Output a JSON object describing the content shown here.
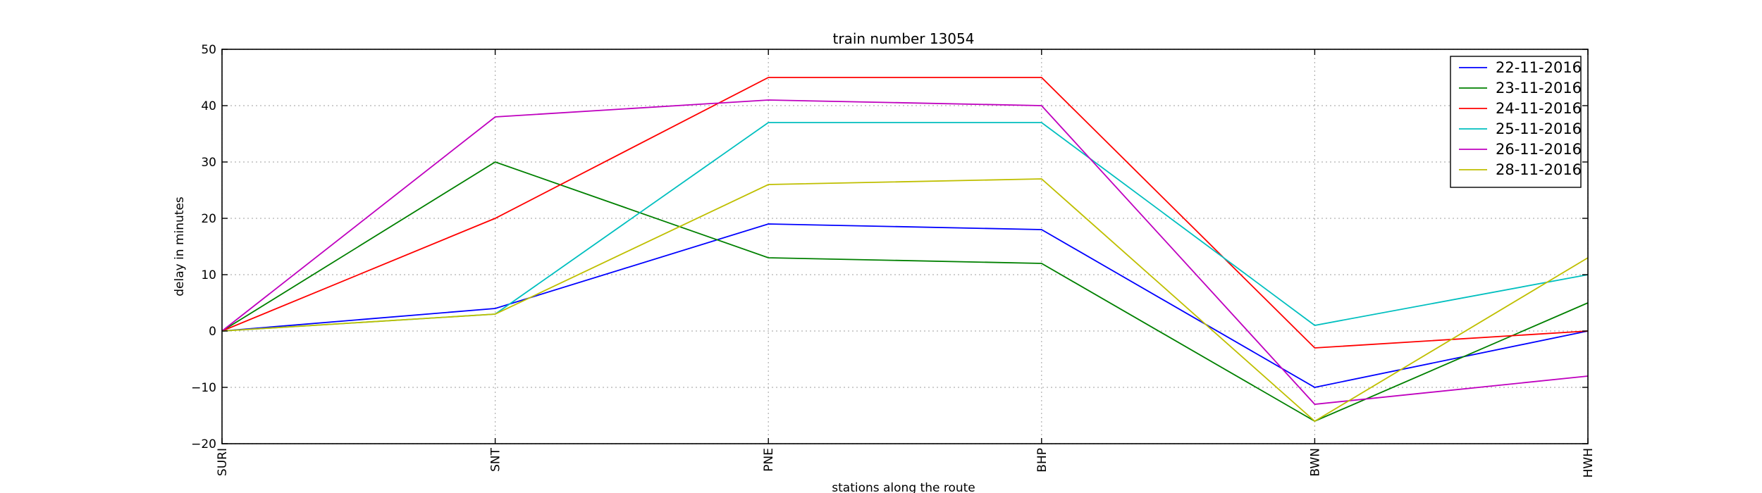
{
  "chart_data": {
    "type": "line",
    "title": "train number 13054",
    "xlabel": "stations along the route",
    "ylabel": "delay in minutes",
    "categories": [
      "SURI",
      "SNT",
      "PNE",
      "BHP",
      "BWN",
      "HWH"
    ],
    "ylim": [
      -20,
      50
    ],
    "yticks": [
      -20,
      -10,
      0,
      10,
      20,
      30,
      40,
      50
    ],
    "grid": true,
    "legend_position": "top-right",
    "series": [
      {
        "name": "22-11-2016",
        "color": "#0000ff",
        "values": [
          0,
          4,
          19,
          18,
          -10,
          0
        ]
      },
      {
        "name": "23-11-2016",
        "color": "#008000",
        "values": [
          0,
          30,
          13,
          12,
          -16,
          5
        ]
      },
      {
        "name": "24-11-2016",
        "color": "#ff0000",
        "values": [
          0,
          20,
          45,
          45,
          -3,
          0
        ]
      },
      {
        "name": "25-11-2016",
        "color": "#00bfbf",
        "values": [
          0,
          3,
          37,
          37,
          1,
          10
        ]
      },
      {
        "name": "26-11-2016",
        "color": "#bf00bf",
        "values": [
          0,
          38,
          41,
          40,
          -13,
          -8
        ]
      },
      {
        "name": "28-11-2016",
        "color": "#bfbf00",
        "values": [
          0,
          3,
          26,
          27,
          -16,
          13
        ]
      }
    ]
  }
}
